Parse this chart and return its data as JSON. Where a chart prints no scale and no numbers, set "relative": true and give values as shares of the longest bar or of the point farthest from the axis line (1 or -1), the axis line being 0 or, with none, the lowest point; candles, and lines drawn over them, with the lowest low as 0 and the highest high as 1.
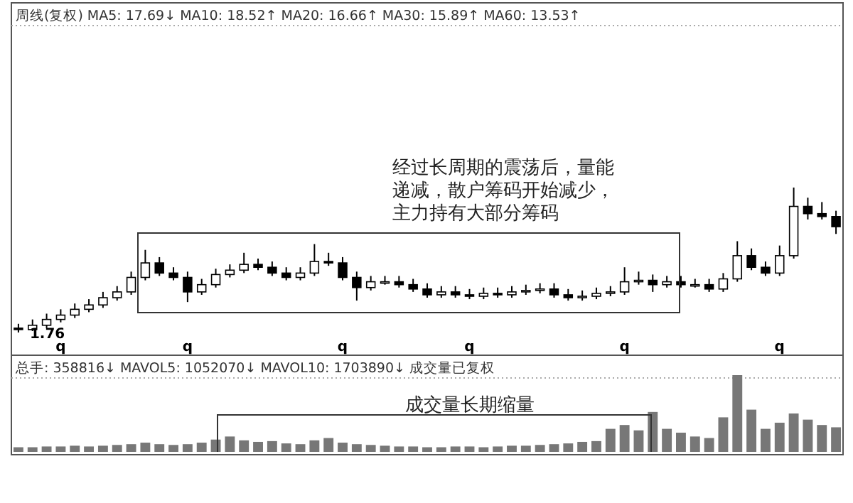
{
  "chart_data": [
    {
      "type": "candlestick",
      "relative": true,
      "color": "#000000",
      "title": "周线(复权)  MA5: 17.69↓ MA10: 18.52↑ MA20: 16.66↑ MA30: 15.89↑ MA60: 13.53↑",
      "categories": [
        null,
        null,
        null,
        "q",
        null,
        null,
        null,
        null,
        null,
        null,
        null,
        null,
        "q",
        null,
        null,
        null,
        null,
        null,
        null,
        null,
        null,
        null,
        null,
        "q",
        null,
        null,
        null,
        null,
        null,
        null,
        null,
        null,
        "q",
        null,
        null,
        null,
        null,
        null,
        null,
        null,
        null,
        null,
        null,
        "q",
        null,
        null,
        null,
        null,
        null,
        null,
        null,
        null,
        null,
        null,
        "q",
        null,
        null,
        null,
        null
      ],
      "ohlc": [
        [
          0.03,
          0.06,
          0.0,
          0.02
        ],
        [
          0.02,
          0.09,
          0.01,
          0.05
        ],
        [
          0.05,
          0.13,
          0.03,
          0.09
        ],
        [
          0.09,
          0.16,
          0.07,
          0.12
        ],
        [
          0.12,
          0.2,
          0.1,
          0.16
        ],
        [
          0.16,
          0.23,
          0.14,
          0.19
        ],
        [
          0.19,
          0.28,
          0.17,
          0.24
        ],
        [
          0.24,
          0.32,
          0.22,
          0.28
        ],
        [
          0.28,
          0.42,
          0.26,
          0.38
        ],
        [
          0.38,
          0.57,
          0.36,
          0.48
        ],
        [
          0.48,
          0.52,
          0.39,
          0.41
        ],
        [
          0.41,
          0.45,
          0.36,
          0.38
        ],
        [
          0.38,
          0.42,
          0.21,
          0.28
        ],
        [
          0.28,
          0.37,
          0.26,
          0.33
        ],
        [
          0.33,
          0.44,
          0.31,
          0.4
        ],
        [
          0.4,
          0.47,
          0.38,
          0.43
        ],
        [
          0.43,
          0.55,
          0.41,
          0.47
        ],
        [
          0.47,
          0.51,
          0.43,
          0.45
        ],
        [
          0.45,
          0.49,
          0.39,
          0.41
        ],
        [
          0.41,
          0.45,
          0.36,
          0.38
        ],
        [
          0.38,
          0.45,
          0.36,
          0.41
        ],
        [
          0.41,
          0.61,
          0.39,
          0.49
        ],
        [
          0.49,
          0.55,
          0.46,
          0.48
        ],
        [
          0.48,
          0.52,
          0.36,
          0.38
        ],
        [
          0.38,
          0.42,
          0.22,
          0.31
        ],
        [
          0.31,
          0.39,
          0.29,
          0.35
        ],
        [
          0.35,
          0.39,
          0.33,
          0.35
        ],
        [
          0.35,
          0.39,
          0.31,
          0.33
        ],
        [
          0.33,
          0.37,
          0.28,
          0.3
        ],
        [
          0.3,
          0.34,
          0.24,
          0.26
        ],
        [
          0.26,
          0.32,
          0.24,
          0.28
        ],
        [
          0.28,
          0.32,
          0.24,
          0.26
        ],
        [
          0.26,
          0.3,
          0.23,
          0.25
        ],
        [
          0.25,
          0.31,
          0.23,
          0.27
        ],
        [
          0.27,
          0.31,
          0.24,
          0.26
        ],
        [
          0.26,
          0.32,
          0.24,
          0.28
        ],
        [
          0.28,
          0.33,
          0.26,
          0.29
        ],
        [
          0.29,
          0.34,
          0.27,
          0.3
        ],
        [
          0.3,
          0.34,
          0.24,
          0.26
        ],
        [
          0.26,
          0.3,
          0.22,
          0.24
        ],
        [
          0.24,
          0.29,
          0.22,
          0.25
        ],
        [
          0.25,
          0.31,
          0.23,
          0.27
        ],
        [
          0.27,
          0.32,
          0.25,
          0.28
        ],
        [
          0.28,
          0.45,
          0.26,
          0.35
        ],
        [
          0.35,
          0.42,
          0.33,
          0.36
        ],
        [
          0.36,
          0.4,
          0.28,
          0.33
        ],
        [
          0.33,
          0.39,
          0.31,
          0.35
        ],
        [
          0.35,
          0.39,
          0.31,
          0.33
        ],
        [
          0.33,
          0.37,
          0.31,
          0.33
        ],
        [
          0.33,
          0.37,
          0.28,
          0.3
        ],
        [
          0.3,
          0.41,
          0.28,
          0.37
        ],
        [
          0.37,
          0.63,
          0.35,
          0.53
        ],
        [
          0.53,
          0.58,
          0.43,
          0.45
        ],
        [
          0.45,
          0.49,
          0.39,
          0.41
        ],
        [
          0.41,
          0.6,
          0.39,
          0.53
        ],
        [
          0.53,
          1.0,
          0.51,
          0.87
        ],
        [
          0.87,
          0.93,
          0.78,
          0.82
        ],
        [
          0.82,
          0.9,
          0.78,
          0.8
        ],
        [
          0.8,
          0.84,
          0.68,
          0.73
        ]
      ],
      "annotations": [
        "1.76",
        "经过长周期的震荡后，量能递减，散户筹码开始减少，主力持有大部分筹码"
      ]
    },
    {
      "type": "bar",
      "relative": true,
      "color": "#777777",
      "title": "总手: 358816↓ MAVOL5: 1052070↓ MAVOL10: 1703890↓ 成交量已复权",
      "categories": [
        null,
        null,
        null,
        null,
        null,
        null,
        null,
        null,
        null,
        null,
        null,
        null,
        null,
        null,
        null,
        null,
        null,
        null,
        null,
        null,
        null,
        null,
        null,
        null,
        null,
        null,
        null,
        null,
        null,
        null,
        null,
        null,
        null,
        null,
        null,
        null,
        null,
        null,
        null,
        null,
        null,
        null,
        null,
        null,
        null,
        null,
        null,
        null,
        null,
        null,
        null,
        null,
        null,
        null,
        null,
        null,
        null,
        null,
        null
      ],
      "values": [
        0.06,
        0.06,
        0.07,
        0.07,
        0.08,
        0.07,
        0.08,
        0.09,
        0.1,
        0.12,
        0.1,
        0.09,
        0.1,
        0.12,
        0.16,
        0.2,
        0.15,
        0.13,
        0.14,
        0.11,
        0.1,
        0.15,
        0.18,
        0.12,
        0.1,
        0.09,
        0.08,
        0.07,
        0.07,
        0.06,
        0.06,
        0.07,
        0.07,
        0.06,
        0.07,
        0.08,
        0.08,
        0.09,
        0.1,
        0.11,
        0.13,
        0.14,
        0.3,
        0.35,
        0.28,
        0.52,
        0.3,
        0.25,
        0.2,
        0.18,
        0.45,
        1.0,
        0.55,
        0.3,
        0.38,
        0.5,
        0.42,
        0.35,
        0.32
      ],
      "annotations": [
        "成交量长期缩量"
      ]
    }
  ]
}
